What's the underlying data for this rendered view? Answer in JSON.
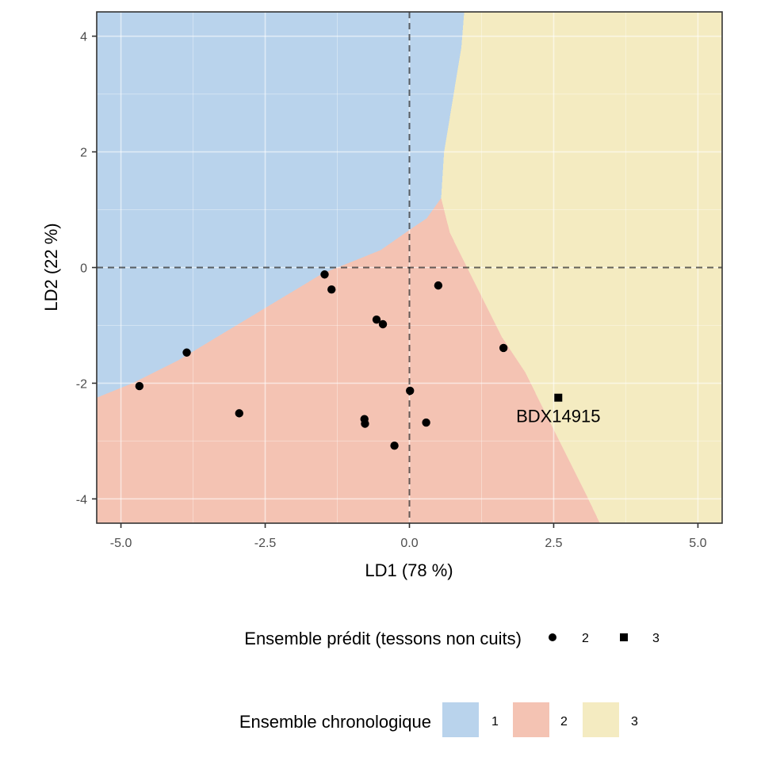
{
  "chart_data": {
    "type": "scatter",
    "xlabel": "LD1 (78 %)",
    "ylabel": "LD2 (22 %)",
    "xlim": [
      -5.42,
      5.42
    ],
    "ylim": [
      -4.42,
      4.42
    ],
    "x_ticks": [
      -5.0,
      -2.5,
      0.0,
      2.5,
      5.0
    ],
    "x_tick_labels": [
      "-5.0",
      "-2.5",
      "0.0",
      "2.5",
      "5.0"
    ],
    "y_ticks": [
      4,
      2,
      0,
      -2,
      -4
    ],
    "y_tick_labels": [
      "4",
      "2",
      "0",
      "-2",
      "-4"
    ],
    "grid": true,
    "reference_lines": {
      "x": 0,
      "y": 0,
      "style": "dashed"
    },
    "regions": {
      "title": "Ensemble chronologique",
      "classes": [
        {
          "label": "1",
          "color": "#b9d3ec"
        },
        {
          "label": "2",
          "color": "#f4c3b3"
        },
        {
          "label": "3",
          "color": "#f4ebc1"
        }
      ],
      "boundary_1_2": [
        [
          -5.42,
          -2.25
        ],
        [
          -4.8,
          -2.0
        ],
        [
          -4.5,
          -1.85
        ],
        [
          -4.0,
          -1.6
        ],
        [
          -3.5,
          -1.3
        ],
        [
          -3.0,
          -1.0
        ],
        [
          -2.5,
          -0.7
        ],
        [
          -2.0,
          -0.4
        ],
        [
          -1.5,
          -0.1
        ],
        [
          -1.0,
          0.1
        ],
        [
          -0.5,
          0.3
        ],
        [
          0.0,
          0.65
        ],
        [
          0.3,
          0.85
        ],
        [
          0.55,
          1.2
        ]
      ],
      "boundary_1_3": [
        [
          0.55,
          1.2
        ],
        [
          0.6,
          2.0
        ],
        [
          0.7,
          2.6
        ],
        [
          0.8,
          3.2
        ],
        [
          0.9,
          3.8
        ],
        [
          0.95,
          4.42
        ]
      ],
      "boundary_2_3": [
        [
          0.55,
          1.2
        ],
        [
          0.7,
          0.6
        ],
        [
          1.0,
          0.0
        ],
        [
          1.3,
          -0.6
        ],
        [
          1.6,
          -1.2
        ],
        [
          2.0,
          -1.8
        ],
        [
          2.3,
          -2.4
        ],
        [
          2.6,
          -3.0
        ],
        [
          2.9,
          -3.6
        ],
        [
          3.1,
          -4.0
        ],
        [
          3.3,
          -4.42
        ]
      ]
    },
    "points_legend": {
      "title": "Ensemble prédit (tessons non cuits)",
      "entries": [
        {
          "label": "2",
          "shape": "circle"
        },
        {
          "label": "3",
          "shape": "square"
        }
      ]
    },
    "points": [
      {
        "x": -4.68,
        "y": -2.05,
        "group": "2"
      },
      {
        "x": -3.86,
        "y": -1.47,
        "group": "2"
      },
      {
        "x": -2.95,
        "y": -2.52,
        "group": "2"
      },
      {
        "x": -1.47,
        "y": -0.12,
        "group": "2"
      },
      {
        "x": -1.35,
        "y": -0.38,
        "group": "2"
      },
      {
        "x": -0.78,
        "y": -2.62,
        "group": "2"
      },
      {
        "x": -0.77,
        "y": -2.7,
        "group": "2"
      },
      {
        "x": -0.57,
        "y": -0.9,
        "group": "2"
      },
      {
        "x": -0.46,
        "y": -0.98,
        "group": "2"
      },
      {
        "x": -0.26,
        "y": -3.08,
        "group": "2"
      },
      {
        "x": 0.01,
        "y": -2.13,
        "group": "2"
      },
      {
        "x": 0.29,
        "y": -2.68,
        "group": "2"
      },
      {
        "x": 0.5,
        "y": -0.31,
        "group": "2"
      },
      {
        "x": 1.63,
        "y": -1.39,
        "group": "2"
      },
      {
        "x": 2.58,
        "y": -2.25,
        "group": "3",
        "label": "BDX14915"
      }
    ]
  }
}
